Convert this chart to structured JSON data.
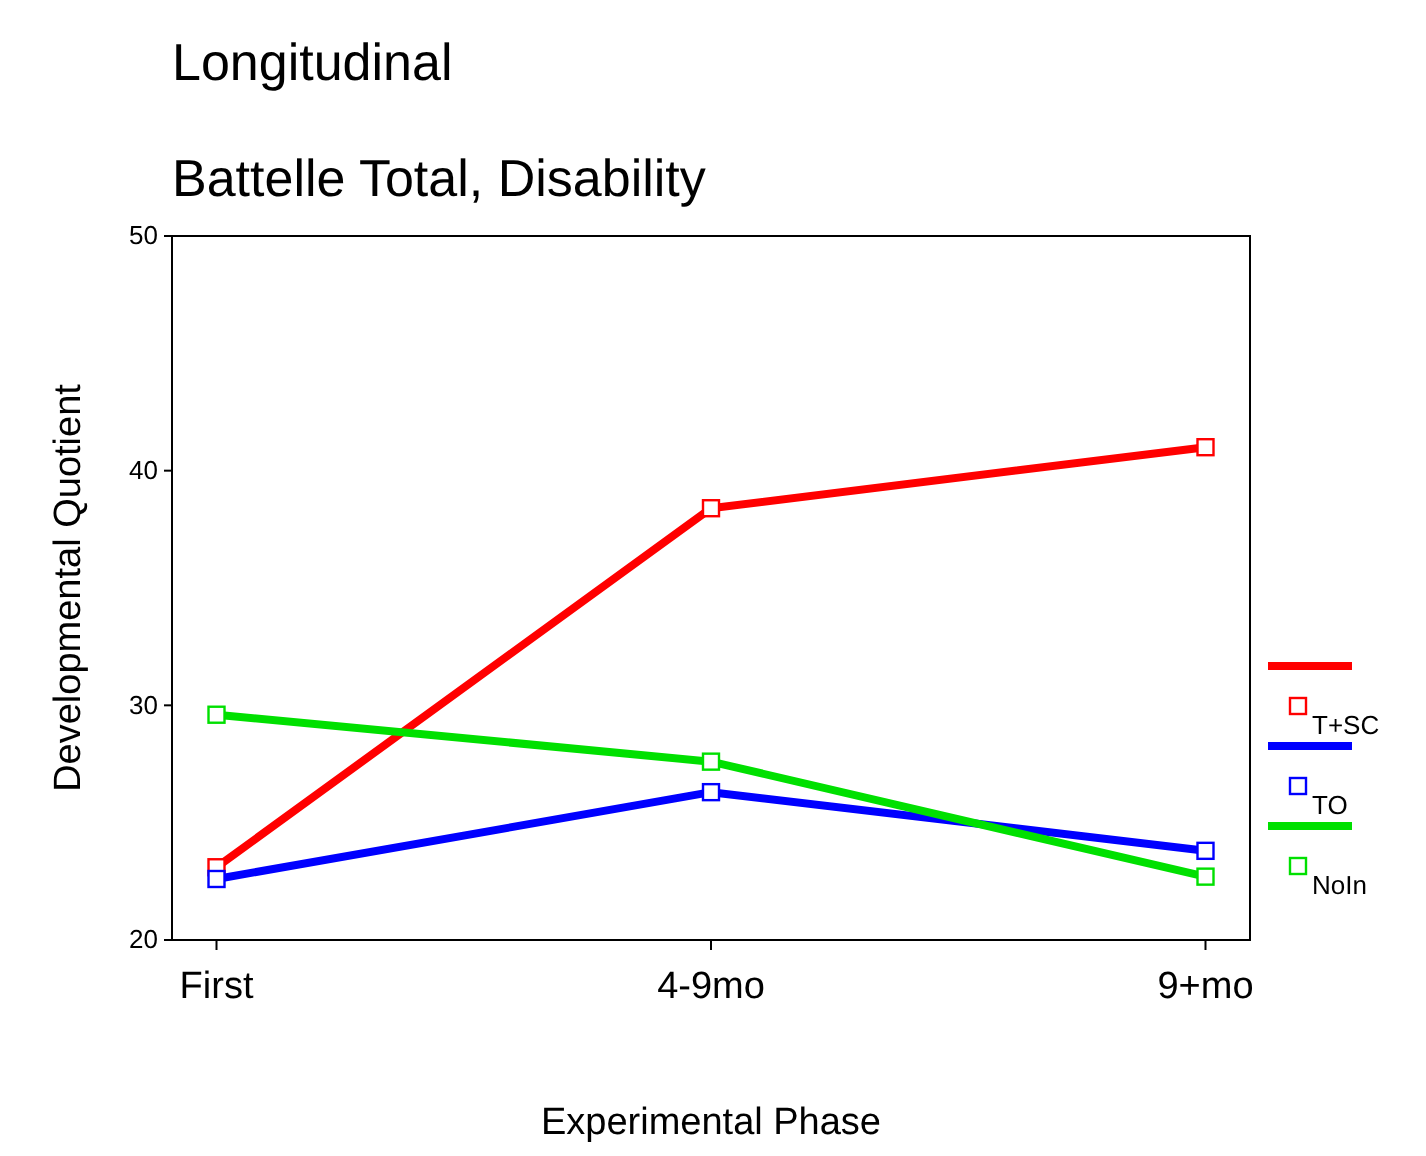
{
  "chart_data": {
    "type": "line",
    "title": "Longitudinal",
    "subtitle": "Battelle Total, Disability",
    "xlabel": "Experimental Phase",
    "ylabel": "Developmental Quotient",
    "categories": [
      "First",
      "4-9mo",
      "9+mo"
    ],
    "series": [
      {
        "name": "T+SC",
        "color": "#ff0000",
        "values": [
          23.1,
          38.4,
          41.0
        ]
      },
      {
        "name": "TO",
        "color": "#0000ff",
        "values": [
          22.6,
          26.3,
          23.8
        ]
      },
      {
        "name": "NoIn",
        "color": "#00e000",
        "values": [
          29.6,
          27.6,
          22.7
        ]
      }
    ],
    "ylim": [
      20,
      50
    ],
    "yticks": [
      20,
      30,
      40,
      50
    ],
    "grid": false,
    "legend": "right",
    "marker": "square",
    "line_style": "solid"
  }
}
